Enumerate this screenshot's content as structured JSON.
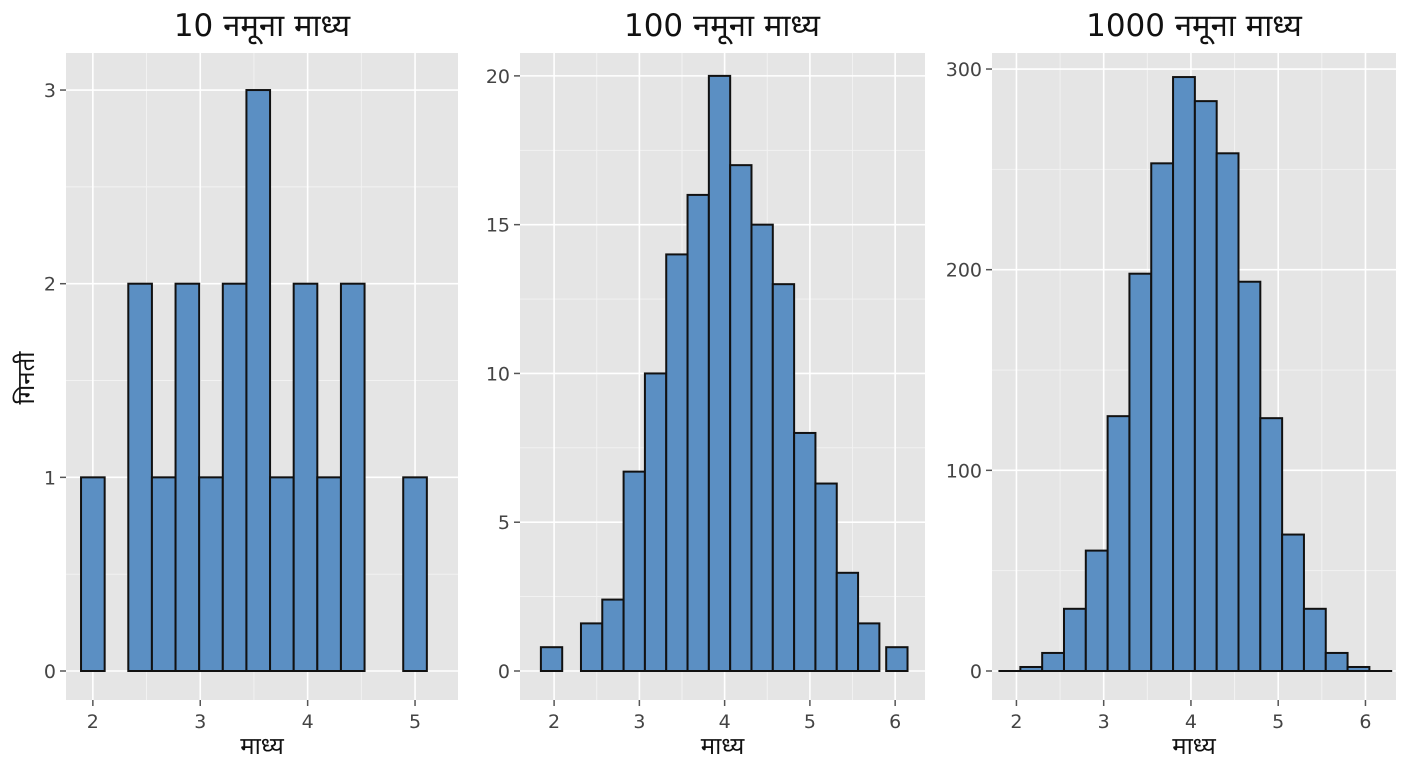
{
  "figure": {
    "ylabel": "गिनती",
    "bar_color": "#5b8fc3",
    "panel_background": "#e5e5e5"
  },
  "chart_data": [
    {
      "type": "bar",
      "title": "10 नमूना माध्य",
      "xlabel": "माध्य",
      "ylabel": "गिनती",
      "bin_width": 0.22,
      "xlim": [
        1.75,
        5.4
      ],
      "ylim": [
        0,
        3.15
      ],
      "xticks": [
        2,
        3,
        4,
        5
      ],
      "yticks": [
        0,
        1,
        2,
        3
      ],
      "x_grid_major": [
        2,
        3,
        4,
        5
      ],
      "x_grid_minor": [
        2.5,
        3.5,
        4.5
      ],
      "y_grid_minor": [
        0.5,
        1.5,
        2.5
      ],
      "bins": [
        {
          "x": 2.0,
          "count": 1
        },
        {
          "x": 2.44,
          "count": 2
        },
        {
          "x": 2.66,
          "count": 1
        },
        {
          "x": 2.88,
          "count": 2
        },
        {
          "x": 3.1,
          "count": 1
        },
        {
          "x": 3.32,
          "count": 2
        },
        {
          "x": 3.54,
          "count": 3
        },
        {
          "x": 3.76,
          "count": 1
        },
        {
          "x": 3.98,
          "count": 2
        },
        {
          "x": 4.2,
          "count": 1
        },
        {
          "x": 4.42,
          "count": 2
        },
        {
          "x": 5.0,
          "count": 1
        }
      ]
    },
    {
      "type": "bar",
      "title": "100 नमूना माध्य",
      "xlabel": "माध्य",
      "ylabel": "",
      "bin_width": 0.25,
      "xlim": [
        1.6,
        6.35
      ],
      "ylim": [
        0,
        20.5
      ],
      "xticks": [
        2,
        3,
        4,
        5,
        6
      ],
      "yticks": [
        0,
        5,
        10,
        15,
        20
      ],
      "x_grid_major": [
        2,
        3,
        4,
        5,
        6
      ],
      "x_grid_minor": [
        2.5,
        3.5,
        4.5,
        5.5
      ],
      "y_grid_minor": [
        2.5,
        7.5,
        12.5,
        17.5
      ],
      "bins": [
        {
          "x": 1.97,
          "count": 0.8
        },
        {
          "x": 2.44,
          "count": 1.6
        },
        {
          "x": 2.69,
          "count": 2.4
        },
        {
          "x": 2.94,
          "count": 6.7
        },
        {
          "x": 3.19,
          "count": 10
        },
        {
          "x": 3.44,
          "count": 14
        },
        {
          "x": 3.69,
          "count": 16
        },
        {
          "x": 3.94,
          "count": 20
        },
        {
          "x": 4.19,
          "count": 17
        },
        {
          "x": 4.44,
          "count": 15
        },
        {
          "x": 4.69,
          "count": 13
        },
        {
          "x": 4.94,
          "count": 8
        },
        {
          "x": 5.19,
          "count": 6.3
        },
        {
          "x": 5.44,
          "count": 3.3
        },
        {
          "x": 5.69,
          "count": 1.6
        },
        {
          "x": 6.02,
          "count": 0.8
        }
      ]
    },
    {
      "type": "bar",
      "title": "1000 नमूना माध्य",
      "xlabel": "माध्य",
      "ylabel": "",
      "bin_width": 0.25,
      "xlim": [
        1.72,
        6.35
      ],
      "ylim": [
        0,
        304
      ],
      "xticks": [
        2,
        3,
        4,
        5,
        6
      ],
      "yticks": [
        0,
        100,
        200,
        300
      ],
      "x_grid_major": [
        2,
        3,
        4,
        5,
        6
      ],
      "x_grid_minor": [
        2.5,
        3.5,
        4.5,
        5.5
      ],
      "y_grid_minor": [
        50,
        150,
        250
      ],
      "bins": [
        {
          "x": 1.93,
          "count": 0
        },
        {
          "x": 2.17,
          "count": 2
        },
        {
          "x": 2.42,
          "count": 9
        },
        {
          "x": 2.67,
          "count": 31
        },
        {
          "x": 2.92,
          "count": 60
        },
        {
          "x": 3.17,
          "count": 127
        },
        {
          "x": 3.42,
          "count": 198
        },
        {
          "x": 3.67,
          "count": 253
        },
        {
          "x": 3.92,
          "count": 296
        },
        {
          "x": 4.17,
          "count": 284
        },
        {
          "x": 4.42,
          "count": 258
        },
        {
          "x": 4.67,
          "count": 194
        },
        {
          "x": 4.92,
          "count": 126
        },
        {
          "x": 5.17,
          "count": 68
        },
        {
          "x": 5.42,
          "count": 31
        },
        {
          "x": 5.67,
          "count": 9
        },
        {
          "x": 5.92,
          "count": 2
        },
        {
          "x": 6.17,
          "count": 0
        }
      ]
    }
  ]
}
